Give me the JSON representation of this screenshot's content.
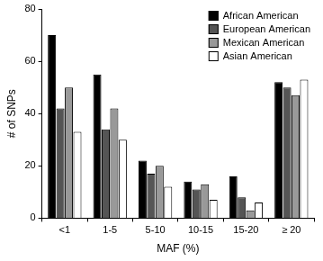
{
  "chart_data": {
    "type": "bar",
    "x_label": "MAF (%)",
    "y_label": "# of SNPs",
    "categories": [
      "<1",
      "1-5",
      "5-10",
      "10-15",
      "15-20",
      "≥ 20"
    ],
    "series": [
      {
        "name": "African American",
        "color": "#000000",
        "values": [
          70,
          55,
          22,
          14,
          16,
          52
        ]
      },
      {
        "name": "European American",
        "color": "#555555",
        "values": [
          42,
          34,
          17,
          11,
          8,
          50
        ]
      },
      {
        "name": "Mexican American",
        "color": "#999999",
        "values": [
          50,
          42,
          20,
          13,
          3,
          47
        ]
      },
      {
        "name": "Asian American",
        "color": "#ffffff",
        "values": [
          33,
          30,
          12,
          7,
          6,
          53
        ]
      }
    ],
    "ylim": [
      0,
      80
    ],
    "yticks": [
      0,
      20,
      40,
      60,
      80
    ],
    "grid": false,
    "legend": "top-right"
  }
}
